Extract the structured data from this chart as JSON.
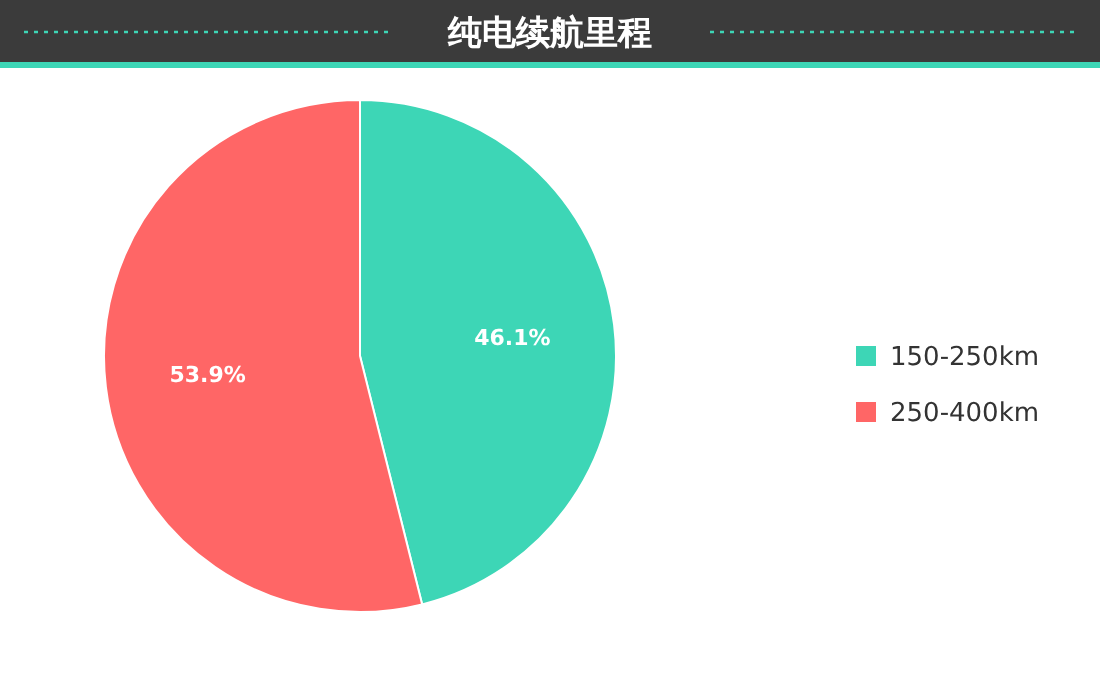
{
  "chart_data": {
    "type": "pie",
    "title": "纯电续航里程",
    "categories": [
      "150-250km",
      "250-400km"
    ],
    "values": [
      46.1,
      53.9
    ],
    "colors": [
      "#3dd6b6",
      "#ff6666"
    ],
    "value_labels": [
      "46.1%",
      "53.9%"
    ],
    "legend": "right"
  }
}
